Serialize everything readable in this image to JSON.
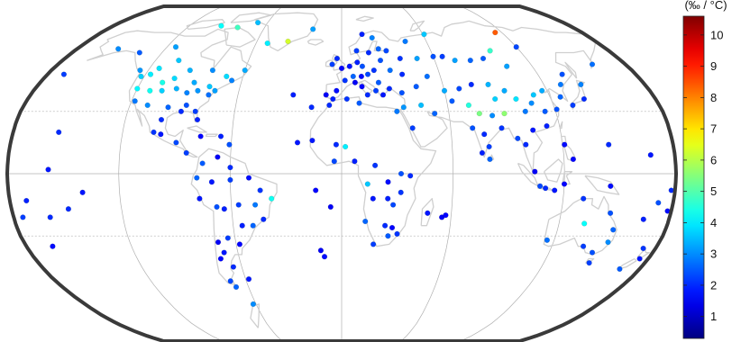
{
  "colorbar": {
    "unit_label": "(‰ / °C)",
    "range": [
      0.3,
      10.6
    ],
    "ticks": [
      1,
      2,
      3,
      4,
      5,
      6,
      7,
      8,
      9,
      10
    ],
    "tick_labels": [
      "1",
      "2",
      "3",
      "4",
      "5",
      "6",
      "7",
      "8",
      "9",
      "10"
    ],
    "colormap": "jet"
  },
  "map": {
    "projection": "robinson",
    "graticule_longitudes": [
      -120,
      -60,
      0,
      60,
      120
    ],
    "graticule_latitudes": [
      -30,
      0,
      30
    ],
    "land_color": "#cfcfcf",
    "frame_color": "#3a3a3a"
  },
  "stations": [
    {
      "lon": -170,
      "lat": 48,
      "v": 2.2
    },
    {
      "lon": -155,
      "lat": 20,
      "v": 2.0
    },
    {
      "lon": -152,
      "lat": 61,
      "v": 3.0
    },
    {
      "lon": -149,
      "lat": -17,
      "v": 2.0
    },
    {
      "lon": -140,
      "lat": -9,
      "v": 1.8
    },
    {
      "lon": -160,
      "lat": -21,
      "v": 2.0
    },
    {
      "lon": -171,
      "lat": -13,
      "v": 1.9
    },
    {
      "lon": -165,
      "lat": -35,
      "v": 1.7
    },
    {
      "lon": -158,
      "lat": 2,
      "v": 1.8
    },
    {
      "lon": -135,
      "lat": 59,
      "v": 2.5
    },
    {
      "lon": -114,
      "lat": 62,
      "v": 3.2
    },
    {
      "lon": -95,
      "lat": 74,
      "v": 4.2
    },
    {
      "lon": -81,
      "lat": 73,
      "v": 4.8
    },
    {
      "lon": -68,
      "lat": 76,
      "v": 3.5
    },
    {
      "lon": -52,
      "lat": 64,
      "v": 4.0
    },
    {
      "lon": -38,
      "lat": 65,
      "v": 6.3
    },
    {
      "lon": -22,
      "lat": 72,
      "v": 3.2
    },
    {
      "lon": -105,
      "lat": 55,
      "v": 3.6
    },
    {
      "lon": -94,
      "lat": 50,
      "v": 3.4
    },
    {
      "lon": -80,
      "lat": 50,
      "v": 3.0
    },
    {
      "lon": -70,
      "lat": 47,
      "v": 3.8
    },
    {
      "lon": -60,
      "lat": 50,
      "v": 3.3
    },
    {
      "lon": -114,
      "lat": 51,
      "v": 3.9
    },
    {
      "lon": -122,
      "lat": 47,
      "v": 3.7
    },
    {
      "lon": -120,
      "lat": 41,
      "v": 4.1
    },
    {
      "lon": -112,
      "lat": 40,
      "v": 4.3
    },
    {
      "lon": -105,
      "lat": 40,
      "v": 3.7
    },
    {
      "lon": -97,
      "lat": 41,
      "v": 3.4
    },
    {
      "lon": -90,
      "lat": 39,
      "v": 2.9
    },
    {
      "lon": -84,
      "lat": 40,
      "v": 3.1
    },
    {
      "lon": -78,
      "lat": 42,
      "v": 3.6
    },
    {
      "lon": -74,
      "lat": 40,
      "v": 3.2
    },
    {
      "lon": -118,
      "lat": 35,
      "v": 2.8
    },
    {
      "lon": -110,
      "lat": 33,
      "v": 3.0
    },
    {
      "lon": -98,
      "lat": 32,
      "v": 2.6
    },
    {
      "lon": -88,
      "lat": 33,
      "v": 2.4
    },
    {
      "lon": -82,
      "lat": 30,
      "v": 2.2
    },
    {
      "lon": -90,
      "lat": 30,
      "v": 2.0
    },
    {
      "lon": -80,
      "lat": 26,
      "v": 1.9
    },
    {
      "lon": -100,
      "lat": 26,
      "v": 2.0
    },
    {
      "lon": -107,
      "lat": 44,
      "v": 4.4
    },
    {
      "lon": -101,
      "lat": 46,
      "v": 3.8
    },
    {
      "lon": -88,
      "lat": 44,
      "v": 3.3
    },
    {
      "lon": -77,
      "lat": 38,
      "v": 2.7
    },
    {
      "lon": -125,
      "lat": 50,
      "v": 3.1
    },
    {
      "lon": -117,
      "lat": 48,
      "v": 4.0
    },
    {
      "lon": -66,
      "lat": 45,
      "v": 2.9
    },
    {
      "lon": -103,
      "lat": 20,
      "v": 2.1
    },
    {
      "lon": -99,
      "lat": 19,
      "v": 1.8
    },
    {
      "lon": -90,
      "lat": 15,
      "v": 2.3
    },
    {
      "lon": -84,
      "lat": 10,
      "v": 2.2
    },
    {
      "lon": -77,
      "lat": 18,
      "v": 1.6
    },
    {
      "lon": -66,
      "lat": 18,
      "v": 1.9
    },
    {
      "lon": -61,
      "lat": 14,
      "v": 2.4
    },
    {
      "lon": -75,
      "lat": 5,
      "v": 2.5
    },
    {
      "lon": -67,
      "lat": 8,
      "v": 1.5
    },
    {
      "lon": -60,
      "lat": 3,
      "v": 2.0
    },
    {
      "lon": -78,
      "lat": -2,
      "v": 2.6
    },
    {
      "lon": -70,
      "lat": -4,
      "v": 1.8
    },
    {
      "lon": -60,
      "lat": -3,
      "v": 2.2
    },
    {
      "lon": -50,
      "lat": -2,
      "v": 1.7
    },
    {
      "lon": -44,
      "lat": -8,
      "v": 2.1
    },
    {
      "lon": -38,
      "lat": -12,
      "v": 4.3
    },
    {
      "lon": -47,
      "lat": -15,
      "v": 2.8
    },
    {
      "lon": -56,
      "lat": -15,
      "v": 2.2
    },
    {
      "lon": -64,
      "lat": -17,
      "v": 1.9
    },
    {
      "lon": -68,
      "lat": -16,
      "v": 2.4
    },
    {
      "lon": -77,
      "lat": -12,
      "v": 1.8
    },
    {
      "lon": -43,
      "lat": -22,
      "v": 2.0
    },
    {
      "lon": -49,
      "lat": -25,
      "v": 2.6
    },
    {
      "lon": -55,
      "lat": -25,
      "v": 1.9
    },
    {
      "lon": -58,
      "lat": -34,
      "v": 1.6
    },
    {
      "lon": -64,
      "lat": -31,
      "v": 2.2
    },
    {
      "lon": -70,
      "lat": -33,
      "v": 1.5
    },
    {
      "lon": -68,
      "lat": -38,
      "v": 1.8
    },
    {
      "lon": -71,
      "lat": -41,
      "v": 1.6
    },
    {
      "lon": -65,
      "lat": -45,
      "v": 2.0
    },
    {
      "lon": -70,
      "lat": -52,
      "v": 2.3
    },
    {
      "lon": -68,
      "lat": -55,
      "v": 2.6
    },
    {
      "lon": -58,
      "lat": -51,
      "v": 1.8
    },
    {
      "lon": -62,
      "lat": -64,
      "v": 3.0
    },
    {
      "lon": -14,
      "lat": -8,
      "v": 1.6
    },
    {
      "lon": -10,
      "lat": -40,
      "v": 1.7
    },
    {
      "lon": -28,
      "lat": 38,
      "v": 1.9
    },
    {
      "lon": -17,
      "lat": 32,
      "v": 2.0
    },
    {
      "lon": -24,
      "lat": 15,
      "v": 1.8
    },
    {
      "lon": -3,
      "lat": 40,
      "v": 1.7
    },
    {
      "lon": 0,
      "lat": 51,
      "v": 1.6
    },
    {
      "lon": -6,
      "lat": 53,
      "v": 2.2
    },
    {
      "lon": -3,
      "lat": 56,
      "v": 2.0
    },
    {
      "lon": 5,
      "lat": 52,
      "v": 1.8
    },
    {
      "lon": 10,
      "lat": 54,
      "v": 1.9
    },
    {
      "lon": 13,
      "lat": 52,
      "v": 2.4
    },
    {
      "lon": 7,
      "lat": 47,
      "v": 2.6
    },
    {
      "lon": 12,
      "lat": 47,
      "v": 1.7
    },
    {
      "lon": 16,
      "lat": 48,
      "v": 2.3
    },
    {
      "lon": 2,
      "lat": 45,
      "v": 2.1
    },
    {
      "lon": 8,
      "lat": 44,
      "v": 1.5
    },
    {
      "lon": 12,
      "lat": 42,
      "v": 1.6
    },
    {
      "lon": 15,
      "lat": 38,
      "v": 2.0
    },
    {
      "lon": 20,
      "lat": 40,
      "v": 2.2
    },
    {
      "lon": 24,
      "lat": 38,
      "v": 1.8
    },
    {
      "lon": 22,
      "lat": 44,
      "v": 2.5
    },
    {
      "lon": 20,
      "lat": 50,
      "v": 2.1
    },
    {
      "lon": 25,
      "lat": 55,
      "v": 2.4
    },
    {
      "lon": 18,
      "lat": 59,
      "v": 2.0
    },
    {
      "lon": 10,
      "lat": 60,
      "v": 2.2
    },
    {
      "lon": 25,
      "lat": 61,
      "v": 2.6
    },
    {
      "lon": 22,
      "lat": 67,
      "v": 2.9
    },
    {
      "lon": 15,
      "lat": 69,
      "v": 1.9
    },
    {
      "lon": 30,
      "lat": 60,
      "v": 2.3
    },
    {
      "lon": 38,
      "lat": 56,
      "v": 2.1
    },
    {
      "lon": 30,
      "lat": 50,
      "v": 2.7
    },
    {
      "lon": 37,
      "lat": 48,
      "v": 2.0
    },
    {
      "lon": 44,
      "lat": 42,
      "v": 2.5
    },
    {
      "lon": 35,
      "lat": 39,
      "v": 2.4
    },
    {
      "lon": 28,
      "lat": 41,
      "v": 2.0
    },
    {
      "lon": 49,
      "lat": 56,
      "v": 3.2
    },
    {
      "lon": 60,
      "lat": 57,
      "v": 2.4
    },
    {
      "lon": 52,
      "lat": 47,
      "v": 2.7
    },
    {
      "lon": 61,
      "lat": 69,
      "v": 3.6
    },
    {
      "lon": 45,
      "lat": 65,
      "v": 2.8
    },
    {
      "lon": -9,
      "lat": 38,
      "v": 1.5
    },
    {
      "lon": -5,
      "lat": 36,
      "v": 1.9
    },
    {
      "lon": 3,
      "lat": 36,
      "v": 2.1
    },
    {
      "lon": 10,
      "lat": 34,
      "v": 2.5
    },
    {
      "lon": -7,
      "lat": 33,
      "v": 2.0
    },
    {
      "lon": 31,
      "lat": 30,
      "v": 2.8
    },
    {
      "lon": 35,
      "lat": 32,
      "v": 3.1
    },
    {
      "lon": 45,
      "lat": 33,
      "v": 3.5
    },
    {
      "lon": 52,
      "lat": 29,
      "v": 2.6
    },
    {
      "lon": 39,
      "lat": 22,
      "v": 2.2
    },
    {
      "lon": -16,
      "lat": 16,
      "v": 1.8
    },
    {
      "lon": -3,
      "lat": 14,
      "v": 2.0
    },
    {
      "lon": 2,
      "lat": 13,
      "v": 4.0
    },
    {
      "lon": 7,
      "lat": 6,
      "v": 1.9
    },
    {
      "lon": -4,
      "lat": 6,
      "v": 2.3
    },
    {
      "lon": 18,
      "lat": 4,
      "v": 2.1
    },
    {
      "lon": 32,
      "lat": 0,
      "v": 2.4
    },
    {
      "lon": 37,
      "lat": -1,
      "v": 2.0
    },
    {
      "lon": 25,
      "lat": -4,
      "v": 1.7
    },
    {
      "lon": 32,
      "lat": -9,
      "v": 2.1
    },
    {
      "lon": 25,
      "lat": -12,
      "v": 1.9
    },
    {
      "lon": 28,
      "lat": -15,
      "v": 2.3
    },
    {
      "lon": 17,
      "lat": -12,
      "v": 1.8
    },
    {
      "lon": 13,
      "lat": -23,
      "v": 2.6
    },
    {
      "lon": 24,
      "lat": -25,
      "v": 2.0
    },
    {
      "lon": 28,
      "lat": -26,
      "v": 1.6
    },
    {
      "lon": 18,
      "lat": -34,
      "v": 2.2
    },
    {
      "lon": 26,
      "lat": -30,
      "v": 2.5
    },
    {
      "lon": 31,
      "lat": -29,
      "v": 2.1
    },
    {
      "lon": 47,
      "lat": -19,
      "v": 1.8
    },
    {
      "lon": 55,
      "lat": -21,
      "v": 1.5
    },
    {
      "lon": 57,
      "lat": -20,
      "v": 1.6
    },
    {
      "lon": -12,
      "lat": -37,
      "v": 1.5
    },
    {
      "lon": -6,
      "lat": -16,
      "v": 1.5
    },
    {
      "lon": 14,
      "lat": -5,
      "v": 3.6
    },
    {
      "lon": 63,
      "lat": 35,
      "v": 2.5
    },
    {
      "lon": 69,
      "lat": 41,
      "v": 2.3
    },
    {
      "lon": 77,
      "lat": 43,
      "v": 2.0
    },
    {
      "lon": 66,
      "lat": 57,
      "v": 2.2
    },
    {
      "lon": 73,
      "lat": 55,
      "v": 3.2
    },
    {
      "lon": 83,
      "lat": 55,
      "v": 2.6
    },
    {
      "lon": 92,
      "lat": 56,
      "v": 2.5
    },
    {
      "lon": 104,
      "lat": 52,
      "v": 3.2
    },
    {
      "lon": 120,
      "lat": 62,
      "v": 2.3
    },
    {
      "lon": 135,
      "lat": 48,
      "v": 2.4
    },
    {
      "lon": 130,
      "lat": 43,
      "v": 2.8
    },
    {
      "lon": 87,
      "lat": 43,
      "v": 3.4
    },
    {
      "lon": 91,
      "lat": 29,
      "v": 5.6
    },
    {
      "lon": 84,
      "lat": 28,
      "v": 3.0
    },
    {
      "lon": 77,
      "lat": 29,
      "v": 5.4
    },
    {
      "lon": 72,
      "lat": 33,
      "v": 4.5
    },
    {
      "lon": 78,
      "lat": 19,
      "v": 2.0
    },
    {
      "lon": 72,
      "lat": 22,
      "v": 2.4
    },
    {
      "lon": 80,
      "lat": 13,
      "v": 2.2
    },
    {
      "lon": 76,
      "lat": 10,
      "v": 1.9
    },
    {
      "lon": 80,
      "lat": 7,
      "v": 2.6
    },
    {
      "lon": 88,
      "lat": 22,
      "v": 2.1
    },
    {
      "lon": 96,
      "lat": 17,
      "v": 2.3
    },
    {
      "lon": 100,
      "lat": 14,
      "v": 2.0
    },
    {
      "lon": 105,
      "lat": 21,
      "v": 1.8
    },
    {
      "lon": 103,
      "lat": 30,
      "v": 2.8
    },
    {
      "lon": 108,
      "lat": 34,
      "v": 3.0
    },
    {
      "lon": 114,
      "lat": 30,
      "v": 2.5
    },
    {
      "lon": 117,
      "lat": 40,
      "v": 3.3
    },
    {
      "lon": 121,
      "lat": 31,
      "v": 2.4
    },
    {
      "lon": 113,
      "lat": 23,
      "v": 1.9
    },
    {
      "lon": 111,
      "lat": 38,
      "v": 3.6
    },
    {
      "lon": 100,
      "lat": 36,
      "v": 3.9
    },
    {
      "lon": 95,
      "lat": 40,
      "v": 3.3
    },
    {
      "lon": 88,
      "lat": 36,
      "v": 3.7
    },
    {
      "lon": 126,
      "lat": 37,
      "v": 2.6
    },
    {
      "lon": 139,
      "lat": 36,
      "v": 2.0
    },
    {
      "lon": 131,
      "lat": 33,
      "v": 2.2
    },
    {
      "lon": 142,
      "lat": 43,
      "v": 2.9
    },
    {
      "lon": 159,
      "lat": 53,
      "v": 2.7
    },
    {
      "lon": 121,
      "lat": 14,
      "v": 1.7
    },
    {
      "lon": 125,
      "lat": 7,
      "v": 1.6
    },
    {
      "lon": 104,
      "lat": 1,
      "v": 1.5
    },
    {
      "lon": 110,
      "lat": -7,
      "v": 2.0
    },
    {
      "lon": 115,
      "lat": -8,
      "v": 1.8
    },
    {
      "lon": 107,
      "lat": -6,
      "v": 2.3
    },
    {
      "lon": 120,
      "lat": -5,
      "v": 1.6
    },
    {
      "lon": 145,
      "lat": 14,
      "v": 2.0
    },
    {
      "lon": 145,
      "lat": -6,
      "v": 1.7
    },
    {
      "lon": 167,
      "lat": 9,
      "v": 1.8
    },
    {
      "lon": 131,
      "lat": -12,
      "v": 2.1
    },
    {
      "lon": 147,
      "lat": -19,
      "v": 2.4
    },
    {
      "lon": 151,
      "lat": -27,
      "v": 2.6
    },
    {
      "lon": 151,
      "lat": -33,
      "v": 3.0
    },
    {
      "lon": 145,
      "lat": -38,
      "v": 2.4
    },
    {
      "lon": 138,
      "lat": -35,
      "v": 2.2
    },
    {
      "lon": 116,
      "lat": -32,
      "v": 2.7
    },
    {
      "lon": 134,
      "lat": -24,
      "v": 4.2
    },
    {
      "lon": 147,
      "lat": -43,
      "v": 2.2
    },
    {
      "lon": 168,
      "lat": -46,
      "v": 2.5
    },
    {
      "lon": 175,
      "lat": -41,
      "v": 1.8
    },
    {
      "lon": 173,
      "lat": -36,
      "v": 2.1
    },
    {
      "lon": 166,
      "lat": -22,
      "v": 1.9
    },
    {
      "lon": 178,
      "lat": -18,
      "v": 1.7
    },
    {
      "lon": 172,
      "lat": -14,
      "v": 2.4
    },
    {
      "lon": 178,
      "lat": -8,
      "v": 2.0
    },
    {
      "lon": -175,
      "lat": -21,
      "v": 2.2
    },
    {
      "lon": 115,
      "lat": 70,
      "v": 8.4
    },
    {
      "lon": 100,
      "lat": 60,
      "v": 4.7
    },
    {
      "lon": 60,
      "lat": 40,
      "v": 3.3
    }
  ]
}
